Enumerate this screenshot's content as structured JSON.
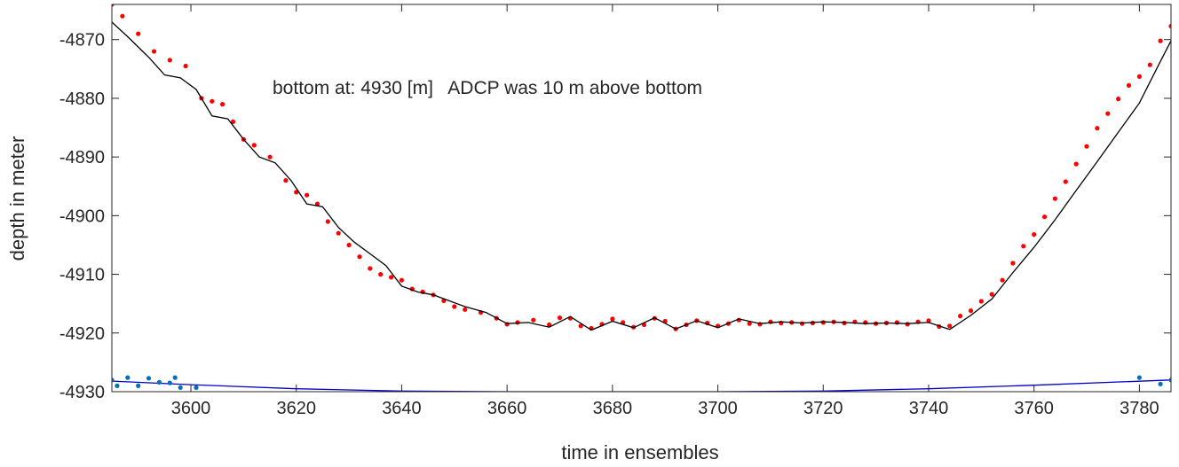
{
  "chart_data": {
    "type": "line",
    "xlabel": "time in ensembles",
    "ylabel": "depth in meter",
    "annotation": "bottom at: 4930 [m]   ADCP was 10 m above bottom",
    "xlim": [
      3585,
      3786
    ],
    "ylim": [
      -4930,
      -4864
    ],
    "xticks": [
      3600,
      3620,
      3640,
      3660,
      3680,
      3700,
      3720,
      3740,
      3760,
      3780
    ],
    "yticks": [
      -4930,
      -4920,
      -4910,
      -4900,
      -4890,
      -4880,
      -4870
    ],
    "grid": false,
    "colors": {
      "red_markers": "#ff0000",
      "black_line": "#000000",
      "blue_line": "#0000cc",
      "blue_markers": "#0072bd",
      "axis": "#262626"
    },
    "series": [
      {
        "style": "markers",
        "color": "#ff0000",
        "x": [
          3585,
          3587,
          3590,
          3593,
          3596,
          3599,
          3602,
          3604,
          3606,
          3608,
          3610,
          3612,
          3615,
          3618,
          3620,
          3622,
          3624,
          3626,
          3628,
          3630,
          3632,
          3634,
          3636,
          3638,
          3640,
          3642,
          3644,
          3646,
          3648,
          3650,
          3652,
          3655,
          3658,
          3660,
          3662,
          3665,
          3668,
          3670,
          3672,
          3674,
          3676,
          3678,
          3680,
          3682,
          3684,
          3686,
          3688,
          3690,
          3692,
          3694,
          3696,
          3698,
          3700,
          3702,
          3704,
          3706,
          3708,
          3710,
          3712,
          3714,
          3716,
          3718,
          3720,
          3722,
          3724,
          3726,
          3728,
          3730,
          3732,
          3734,
          3736,
          3738,
          3740,
          3742,
          3744,
          3746,
          3748,
          3750,
          3752,
          3754,
          3756,
          3758,
          3760,
          3762,
          3764,
          3766,
          3768,
          3770,
          3772,
          3774,
          3776,
          3778,
          3780,
          3782,
          3784,
          3786
        ],
        "y": [
          -4864,
          -4866,
          -4869,
          -4872,
          -4873.5,
          -4874.5,
          -4880,
          -4880.5,
          -4881,
          -4884,
          -4887,
          -4888,
          -4890,
          -4894,
          -4896,
          -4896.5,
          -4898,
          -4901,
          -4903,
          -4905,
          -4907,
          -4909,
          -4910,
          -4910.5,
          -4911,
          -4912.5,
          -4913,
          -4913.5,
          -4914.5,
          -4915.5,
          -4916,
          -4916.5,
          -4917.5,
          -4918.5,
          -4918.2,
          -4917.8,
          -4918.6,
          -4917.4,
          -4917.5,
          -4918.8,
          -4919.2,
          -4918.5,
          -4917.6,
          -4918.2,
          -4919,
          -4918.6,
          -4917.5,
          -4918,
          -4919.3,
          -4918.6,
          -4917.9,
          -4918.3,
          -4918.8,
          -4918.4,
          -4917.8,
          -4918.4,
          -4918.5,
          -4918.1,
          -4918.3,
          -4918.2,
          -4918.4,
          -4918.3,
          -4918.2,
          -4918.1,
          -4918.3,
          -4918.1,
          -4918.2,
          -4918.4,
          -4918.3,
          -4918.2,
          -4918.5,
          -4918.1,
          -4917.9,
          -4918.9,
          -4918.8,
          -4917.1,
          -4916.2,
          -4914.6,
          -4913.4,
          -4911,
          -4908.1,
          -4905.2,
          -4903.2,
          -4900.2,
          -4897.1,
          -4894.2,
          -4891.2,
          -4888.2,
          -4885.1,
          -4882.6,
          -4880.1,
          -4877.8,
          -4876.3,
          -4874.3,
          -4870.2,
          -4867.7
        ]
      },
      {
        "style": "line",
        "color": "#000000",
        "x": [
          3585,
          3588,
          3592,
          3595,
          3598,
          3601,
          3604,
          3607,
          3610,
          3613,
          3616,
          3619,
          3622,
          3625,
          3628,
          3631,
          3634,
          3637,
          3640,
          3643,
          3646,
          3649,
          3652,
          3656,
          3660,
          3664,
          3668,
          3672,
          3676,
          3680,
          3684,
          3688,
          3692,
          3696,
          3700,
          3704,
          3708,
          3712,
          3716,
          3720,
          3724,
          3728,
          3732,
          3736,
          3740,
          3744,
          3748,
          3752,
          3756,
          3760,
          3764,
          3768,
          3772,
          3776,
          3780,
          3784,
          3786
        ],
        "y": [
          -4867,
          -4869.5,
          -4873,
          -4876,
          -4876.5,
          -4878.5,
          -4883,
          -4883.5,
          -4887,
          -4890,
          -4891,
          -4894,
          -4898,
          -4898.5,
          -4902,
          -4904.5,
          -4906.5,
          -4908.5,
          -4912,
          -4913,
          -4913.5,
          -4914.5,
          -4915.5,
          -4916.5,
          -4918.4,
          -4918.2,
          -4919,
          -4917.2,
          -4919.5,
          -4918,
          -4919.1,
          -4917.4,
          -4919.3,
          -4917.9,
          -4919.1,
          -4917.6,
          -4918.4,
          -4918.1,
          -4918.3,
          -4918.1,
          -4918.2,
          -4918.4,
          -4918.3,
          -4918.4,
          -4918.2,
          -4919.4,
          -4917,
          -4914.2,
          -4909.7,
          -4905.4,
          -4900.7,
          -4895.7,
          -4890.8,
          -4885.8,
          -4880.8,
          -4873.7,
          -4870.2
        ]
      },
      {
        "style": "line",
        "color": "#0000cc",
        "x": [
          3585,
          3600,
          3620,
          3640,
          3660,
          3680,
          3700,
          3720,
          3740,
          3760,
          3786
        ],
        "y": [
          -4928.2,
          -4928.8,
          -4929.5,
          -4929.9,
          -4930,
          -4930,
          -4930,
          -4929.9,
          -4929.5,
          -4928.9,
          -4928
        ]
      },
      {
        "style": "markers",
        "color": "#0072bd",
        "x": [
          3585,
          3586,
          3588,
          3590,
          3592,
          3594,
          3596,
          3597,
          3598,
          3601,
          3780,
          3784,
          3786
        ],
        "y": [
          -4928,
          -4929,
          -4927.6,
          -4929,
          -4927.7,
          -4928.4,
          -4928.5,
          -4927.6,
          -4929.3,
          -4929.3,
          -4927.6,
          -4928.7,
          -4928
        ]
      }
    ]
  }
}
